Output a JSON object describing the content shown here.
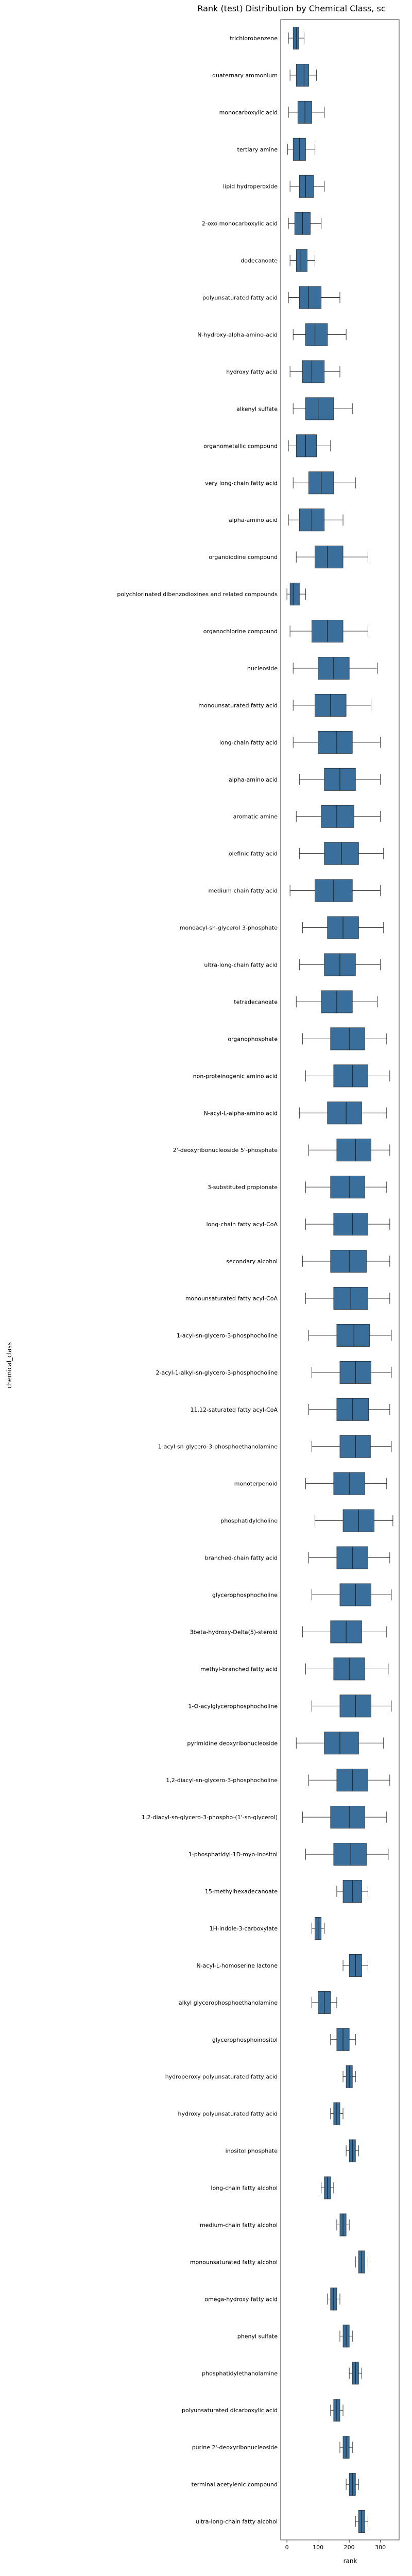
{
  "chart_data": {
    "type": "boxplot",
    "title": "Rank (test) Distribution by Chemical Class, sc",
    "xlabel": "rank",
    "ylabel": "chemical_class",
    "xlim": [
      -20,
      360
    ],
    "x_ticks": [
      "0",
      "100",
      "200",
      "300"
    ],
    "x_tick_values": [
      0,
      100,
      200,
      300
    ],
    "grid": false,
    "colors": {
      "box": "#3a6f9c",
      "whisker": "#333333",
      "outlier": "#333333",
      "frame": "#333333"
    },
    "readable_categories": [
      {
        "label": "trichlorobenzene",
        "q1": 20,
        "median": 30,
        "q3": 38,
        "wlo": 5,
        "whi": 55
      },
      {
        "label": "quaternary ammonium",
        "q1": 30,
        "median": 55,
        "q3": 70,
        "wlo": 10,
        "whi": 95
      },
      {
        "label": "monocarboxylic acid",
        "q1": 35,
        "median": 58,
        "q3": 80,
        "wlo": 5,
        "whi": 120
      },
      {
        "label": "tertiary amine",
        "q1": 20,
        "median": 40,
        "q3": 60,
        "wlo": 2,
        "whi": 90
      },
      {
        "label": "lipid hydroperoxide",
        "q1": 40,
        "median": 60,
        "q3": 85,
        "wlo": 10,
        "whi": 120
      },
      {
        "label": "2-oxo monocarboxylic acid",
        "q1": 25,
        "median": 50,
        "q3": 75,
        "wlo": 5,
        "whi": 110
      },
      {
        "label": "dodecanoate",
        "q1": 30,
        "median": 45,
        "q3": 65,
        "wlo": 10,
        "whi": 90
      },
      {
        "label": "polyunsaturated fatty acid",
        "q1": 40,
        "median": 70,
        "q3": 110,
        "wlo": 5,
        "whi": 170
      },
      {
        "label": "N-hydroxy-alpha-amino-acid",
        "q1": 60,
        "median": 90,
        "q3": 130,
        "wlo": 20,
        "whi": 190
      },
      {
        "label": "hydroxy fatty acid",
        "q1": 50,
        "median": 80,
        "q3": 120,
        "wlo": 10,
        "whi": 170
      },
      {
        "label": "alkenyl sulfate",
        "q1": 60,
        "median": 100,
        "q3": 150,
        "wlo": 20,
        "whi": 210
      },
      {
        "label": "organometallic compound",
        "q1": 30,
        "median": 60,
        "q3": 95,
        "wlo": 5,
        "whi": 140
      },
      {
        "label": "very long-chain fatty acid",
        "q1": 70,
        "median": 110,
        "q3": 150,
        "wlo": 20,
        "whi": 220
      },
      {
        "label": "alpha-amino acid",
        "q1": 40,
        "median": 80,
        "q3": 120,
        "wlo": 5,
        "whi": 180
      },
      {
        "label": "organoiodine compound",
        "q1": 90,
        "median": 130,
        "q3": 180,
        "wlo": 30,
        "whi": 260
      },
      {
        "label": "polychlorinated dibenzodioxines and related compounds",
        "q1": 10,
        "median": 20,
        "q3": 40,
        "wlo": 0,
        "whi": 60
      },
      {
        "label": "organochlorine compound",
        "q1": 80,
        "median": 130,
        "q3": 180,
        "wlo": 10,
        "whi": 260
      },
      {
        "label": "nucleoside",
        "q1": 100,
        "median": 150,
        "q3": 200,
        "wlo": 20,
        "whi": 290
      },
      {
        "label": "monounsaturated fatty acid",
        "q1": 90,
        "median": 140,
        "q3": 190,
        "wlo": 20,
        "whi": 270
      },
      {
        "label": "long-chain fatty acid",
        "q1": 100,
        "median": 160,
        "q3": 210,
        "wlo": 20,
        "whi": 300
      },
      {
        "label": "alpha-amino acid",
        "q1": 120,
        "median": 170,
        "q3": 220,
        "wlo": 40,
        "whi": 300
      },
      {
        "label": "aromatic amine",
        "q1": 110,
        "median": 160,
        "q3": 215,
        "wlo": 30,
        "whi": 300
      },
      {
        "label": "olefinic fatty acid",
        "q1": 120,
        "median": 175,
        "q3": 230,
        "wlo": 40,
        "whi": 310
      },
      {
        "label": "medium-chain fatty acid",
        "q1": 90,
        "median": 150,
        "q3": 210,
        "wlo": 10,
        "whi": 300
      },
      {
        "label": "monoacyl-sn-glycerol 3-phosphate",
        "q1": 130,
        "median": 180,
        "q3": 230,
        "wlo": 50,
        "whi": 310
      },
      {
        "label": "ultra-long-chain fatty acid",
        "q1": 120,
        "median": 170,
        "q3": 220,
        "wlo": 40,
        "whi": 300
      },
      {
        "label": "tetradecanoate",
        "q1": 110,
        "median": 160,
        "q3": 210,
        "wlo": 30,
        "whi": 290
      },
      {
        "label": "organophosphate",
        "q1": 140,
        "median": 200,
        "q3": 250,
        "wlo": 50,
        "whi": 320
      },
      {
        "label": "non-proteinogenic amino acid",
        "q1": 150,
        "median": 210,
        "q3": 260,
        "wlo": 60,
        "whi": 330
      },
      {
        "label": "N-acyl-L-alpha-amino acid",
        "q1": 130,
        "median": 190,
        "q3": 240,
        "wlo": 40,
        "whi": 320
      },
      {
        "label": "2'-deoxyribonucleoside 5'-phosphate",
        "q1": 160,
        "median": 220,
        "q3": 270,
        "wlo": 70,
        "whi": 330
      },
      {
        "label": "3-substituted propionate",
        "q1": 140,
        "median": 200,
        "q3": 250,
        "wlo": 60,
        "whi": 320
      },
      {
        "label": "long-chain fatty acyl-CoA",
        "q1": 150,
        "median": 210,
        "q3": 260,
        "wlo": 60,
        "whi": 330
      },
      {
        "label": "secondary alcohol",
        "q1": 140,
        "median": 200,
        "q3": 255,
        "wlo": 50,
        "whi": 330
      },
      {
        "label": "monounsaturated fatty acyl-CoA",
        "q1": 150,
        "median": 205,
        "q3": 260,
        "wlo": 60,
        "whi": 330
      },
      {
        "label": "1-acyl-sn-glycero-3-phosphocholine",
        "q1": 160,
        "median": 215,
        "q3": 265,
        "wlo": 70,
        "whi": 335
      },
      {
        "label": "2-acyl-1-alkyl-sn-glycero-3-phosphocholine",
        "q1": 170,
        "median": 220,
        "q3": 270,
        "wlo": 80,
        "whi": 335
      },
      {
        "label": "11,12-saturated fatty acyl-CoA",
        "q1": 160,
        "median": 210,
        "q3": 262,
        "wlo": 70,
        "whi": 330
      },
      {
        "label": "1-acyl-sn-glycero-3-phosphoethanolamine",
        "q1": 170,
        "median": 220,
        "q3": 268,
        "wlo": 80,
        "whi": 335
      },
      {
        "label": "monoterpenoid",
        "q1": 150,
        "median": 200,
        "q3": 250,
        "wlo": 60,
        "whi": 320
      },
      {
        "label": "phosphatidylcholine",
        "q1": 180,
        "median": 230,
        "q3": 280,
        "wlo": 90,
        "whi": 340
      },
      {
        "label": "branched-chain fatty acid",
        "q1": 160,
        "median": 210,
        "q3": 260,
        "wlo": 70,
        "whi": 330
      },
      {
        "label": "glycerophosphocholine",
        "q1": 170,
        "median": 220,
        "q3": 270,
        "wlo": 80,
        "whi": 335
      },
      {
        "label": "3beta-hydroxy-Delta(5)-steroid",
        "q1": 140,
        "median": 190,
        "q3": 240,
        "wlo": 50,
        "whi": 320
      },
      {
        "label": "methyl-branched fatty acid",
        "q1": 150,
        "median": 200,
        "q3": 250,
        "wlo": 60,
        "whi": 325
      },
      {
        "label": "1-O-acylglycerophosphocholine",
        "q1": 170,
        "median": 220,
        "q3": 270,
        "wlo": 80,
        "whi": 335
      },
      {
        "label": "pyrimidine deoxyribonucleoside",
        "q1": 120,
        "median": 170,
        "q3": 230,
        "wlo": 30,
        "whi": 310
      },
      {
        "label": "1,2-diacyl-sn-glycero-3-phosphocholine",
        "q1": 160,
        "median": 210,
        "q3": 260,
        "wlo": 70,
        "whi": 330
      },
      {
        "label": "1,2-diacyl-sn-glycero-3-phospho-(1'-sn-glycerol)",
        "q1": 140,
        "median": 200,
        "q3": 250,
        "wlo": 50,
        "whi": 320
      },
      {
        "label": "1-phosphatidyl-1D-myo-inositol",
        "q1": 150,
        "median": 205,
        "q3": 255,
        "wlo": 60,
        "whi": 325
      },
      {
        "label": "15-methylhexadecanoate",
        "q1": 180,
        "median": 210,
        "q3": 240,
        "wlo": 160,
        "whi": 260
      },
      {
        "label": "1H-indole-3-carboxylate",
        "q1": 90,
        "median": 100,
        "q3": 110,
        "wlo": 80,
        "whi": 120
      },
      {
        "label": "N-acyl-L-homoserine lactone",
        "q1": 200,
        "median": 220,
        "q3": 240,
        "wlo": 180,
        "whi": 260
      },
      {
        "label": "alkyl glycerophosphoethanolamine",
        "q1": 100,
        "median": 120,
        "q3": 140,
        "wlo": 80,
        "whi": 160
      },
      {
        "label": "glycerophosphoinositol",
        "q1": 160,
        "median": 180,
        "q3": 200,
        "wlo": 140,
        "whi": 220
      },
      {
        "label": "hydroperoxy polyunsaturated fatty acid",
        "q1": 190,
        "median": 200,
        "q3": 210,
        "wlo": 180,
        "whi": 220
      },
      {
        "label": "hydroxy polyunsaturated fatty acid",
        "q1": 150,
        "median": 160,
        "q3": 170,
        "wlo": 140,
        "whi": 180
      },
      {
        "label": "inositol phosphate",
        "q1": 200,
        "median": 210,
        "q3": 220,
        "wlo": 190,
        "whi": 230
      },
      {
        "label": "long-chain fatty alcohol",
        "q1": 120,
        "median": 130,
        "q3": 140,
        "wlo": 110,
        "whi": 150
      },
      {
        "label": "medium-chain fatty alcohol",
        "q1": 170,
        "median": 180,
        "q3": 190,
        "wlo": 160,
        "whi": 200
      },
      {
        "label": "monounsaturated fatty alcohol",
        "q1": 230,
        "median": 240,
        "q3": 250,
        "wlo": 220,
        "whi": 260
      },
      {
        "label": "omega-hydroxy fatty acid",
        "q1": 140,
        "median": 150,
        "q3": 160,
        "wlo": 130,
        "whi": 170
      },
      {
        "label": "phenyl sulfate",
        "q1": 180,
        "median": 190,
        "q3": 200,
        "wlo": 170,
        "whi": 210
      },
      {
        "label": "phosphatidylethanolamine",
        "q1": 210,
        "median": 220,
        "q3": 230,
        "wlo": 200,
        "whi": 240
      },
      {
        "label": "polyunsaturated dicarboxylic acid",
        "q1": 150,
        "median": 160,
        "q3": 170,
        "wlo": 140,
        "whi": 180
      },
      {
        "label": "purine 2'-deoxyribonucleoside",
        "q1": 180,
        "median": 190,
        "q3": 200,
        "wlo": 170,
        "whi": 210
      },
      {
        "label": "terminal acetylenic compound",
        "q1": 200,
        "median": 210,
        "q3": 220,
        "wlo": 190,
        "whi": 230
      },
      {
        "label": "ultra-long-chain fatty alcohol",
        "q1": 230,
        "median": 240,
        "q3": 250,
        "wlo": 220,
        "whi": 260
      }
    ]
  }
}
